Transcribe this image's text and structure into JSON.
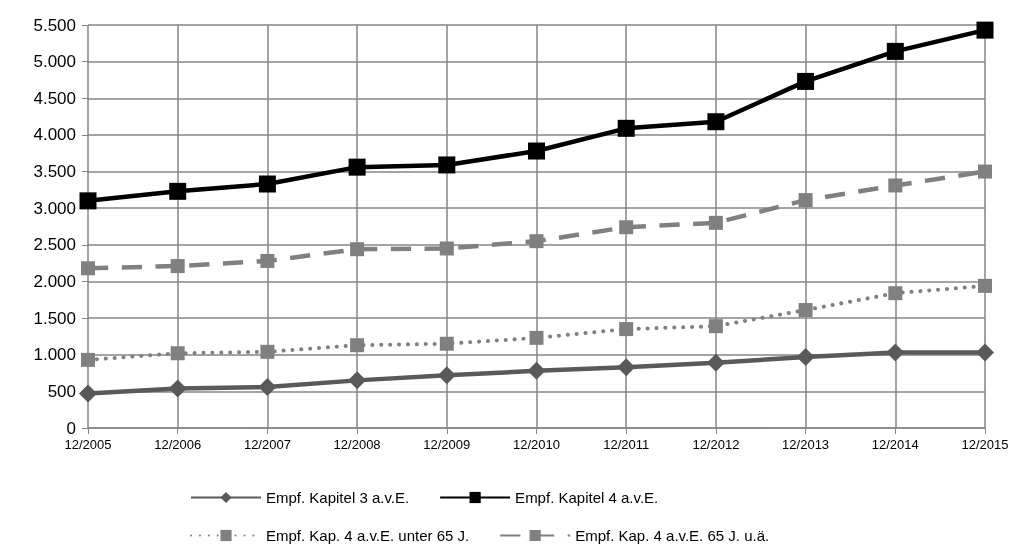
{
  "chart_data": {
    "type": "line",
    "categories": [
      "12/2005",
      "12/2006",
      "12/2007",
      "12/2008",
      "12/2009",
      "12/2010",
      "12/2011",
      "12/2012",
      "12/2013",
      "12/2014",
      "12/2015"
    ],
    "series": [
      {
        "name": "Empf. Kapitel 3 a.v.E.",
        "color": "#595959",
        "marker": "diamond",
        "line_style": "solid",
        "values": [
          470,
          540,
          560,
          650,
          720,
          780,
          830,
          890,
          970,
          1030,
          1030
        ]
      },
      {
        "name": "Empf. Kapitel 4 a.v.E.",
        "color": "#000000",
        "marker": "square",
        "line_style": "solid",
        "values": [
          3100,
          3230,
          3330,
          3560,
          3590,
          3780,
          4090,
          4180,
          4730,
          5140,
          5430
        ]
      },
      {
        "name": "Empf. Kap. 4 a.v.E. unter 65 J.",
        "color": "#808080",
        "marker": "square",
        "line_style": "dotted",
        "values": [
          930,
          1020,
          1040,
          1130,
          1150,
          1230,
          1350,
          1390,
          1610,
          1840,
          1940
        ]
      },
      {
        "name": "Empf. Kap. 4 a.v.E. 65 J. u.ä.",
        "color": "#808080",
        "marker": "square",
        "line_style": "dashed",
        "values": [
          2180,
          2210,
          2280,
          2440,
          2450,
          2550,
          2740,
          2800,
          3110,
          3310,
          3500
        ]
      }
    ],
    "ylim": [
      0,
      5500
    ],
    "yticks": [
      0,
      500,
      {
        "value": 1000,
        "label": "1.000"
      },
      {
        "value": 1500,
        "label": "1.500"
      },
      {
        "value": 2000,
        "label": "2.000"
      },
      {
        "value": 2500,
        "label": "2.500"
      },
      {
        "value": 3000,
        "label": "3.000"
      },
      {
        "value": 3500,
        "label": "3.500"
      },
      {
        "value": 4000,
        "label": "4.000"
      },
      {
        "value": 4500,
        "label": "4.500"
      },
      {
        "value": 5000,
        "label": "5.000"
      },
      {
        "value": 5500,
        "label": "5.500"
      }
    ],
    "grid": true,
    "legend": "bottom"
  }
}
